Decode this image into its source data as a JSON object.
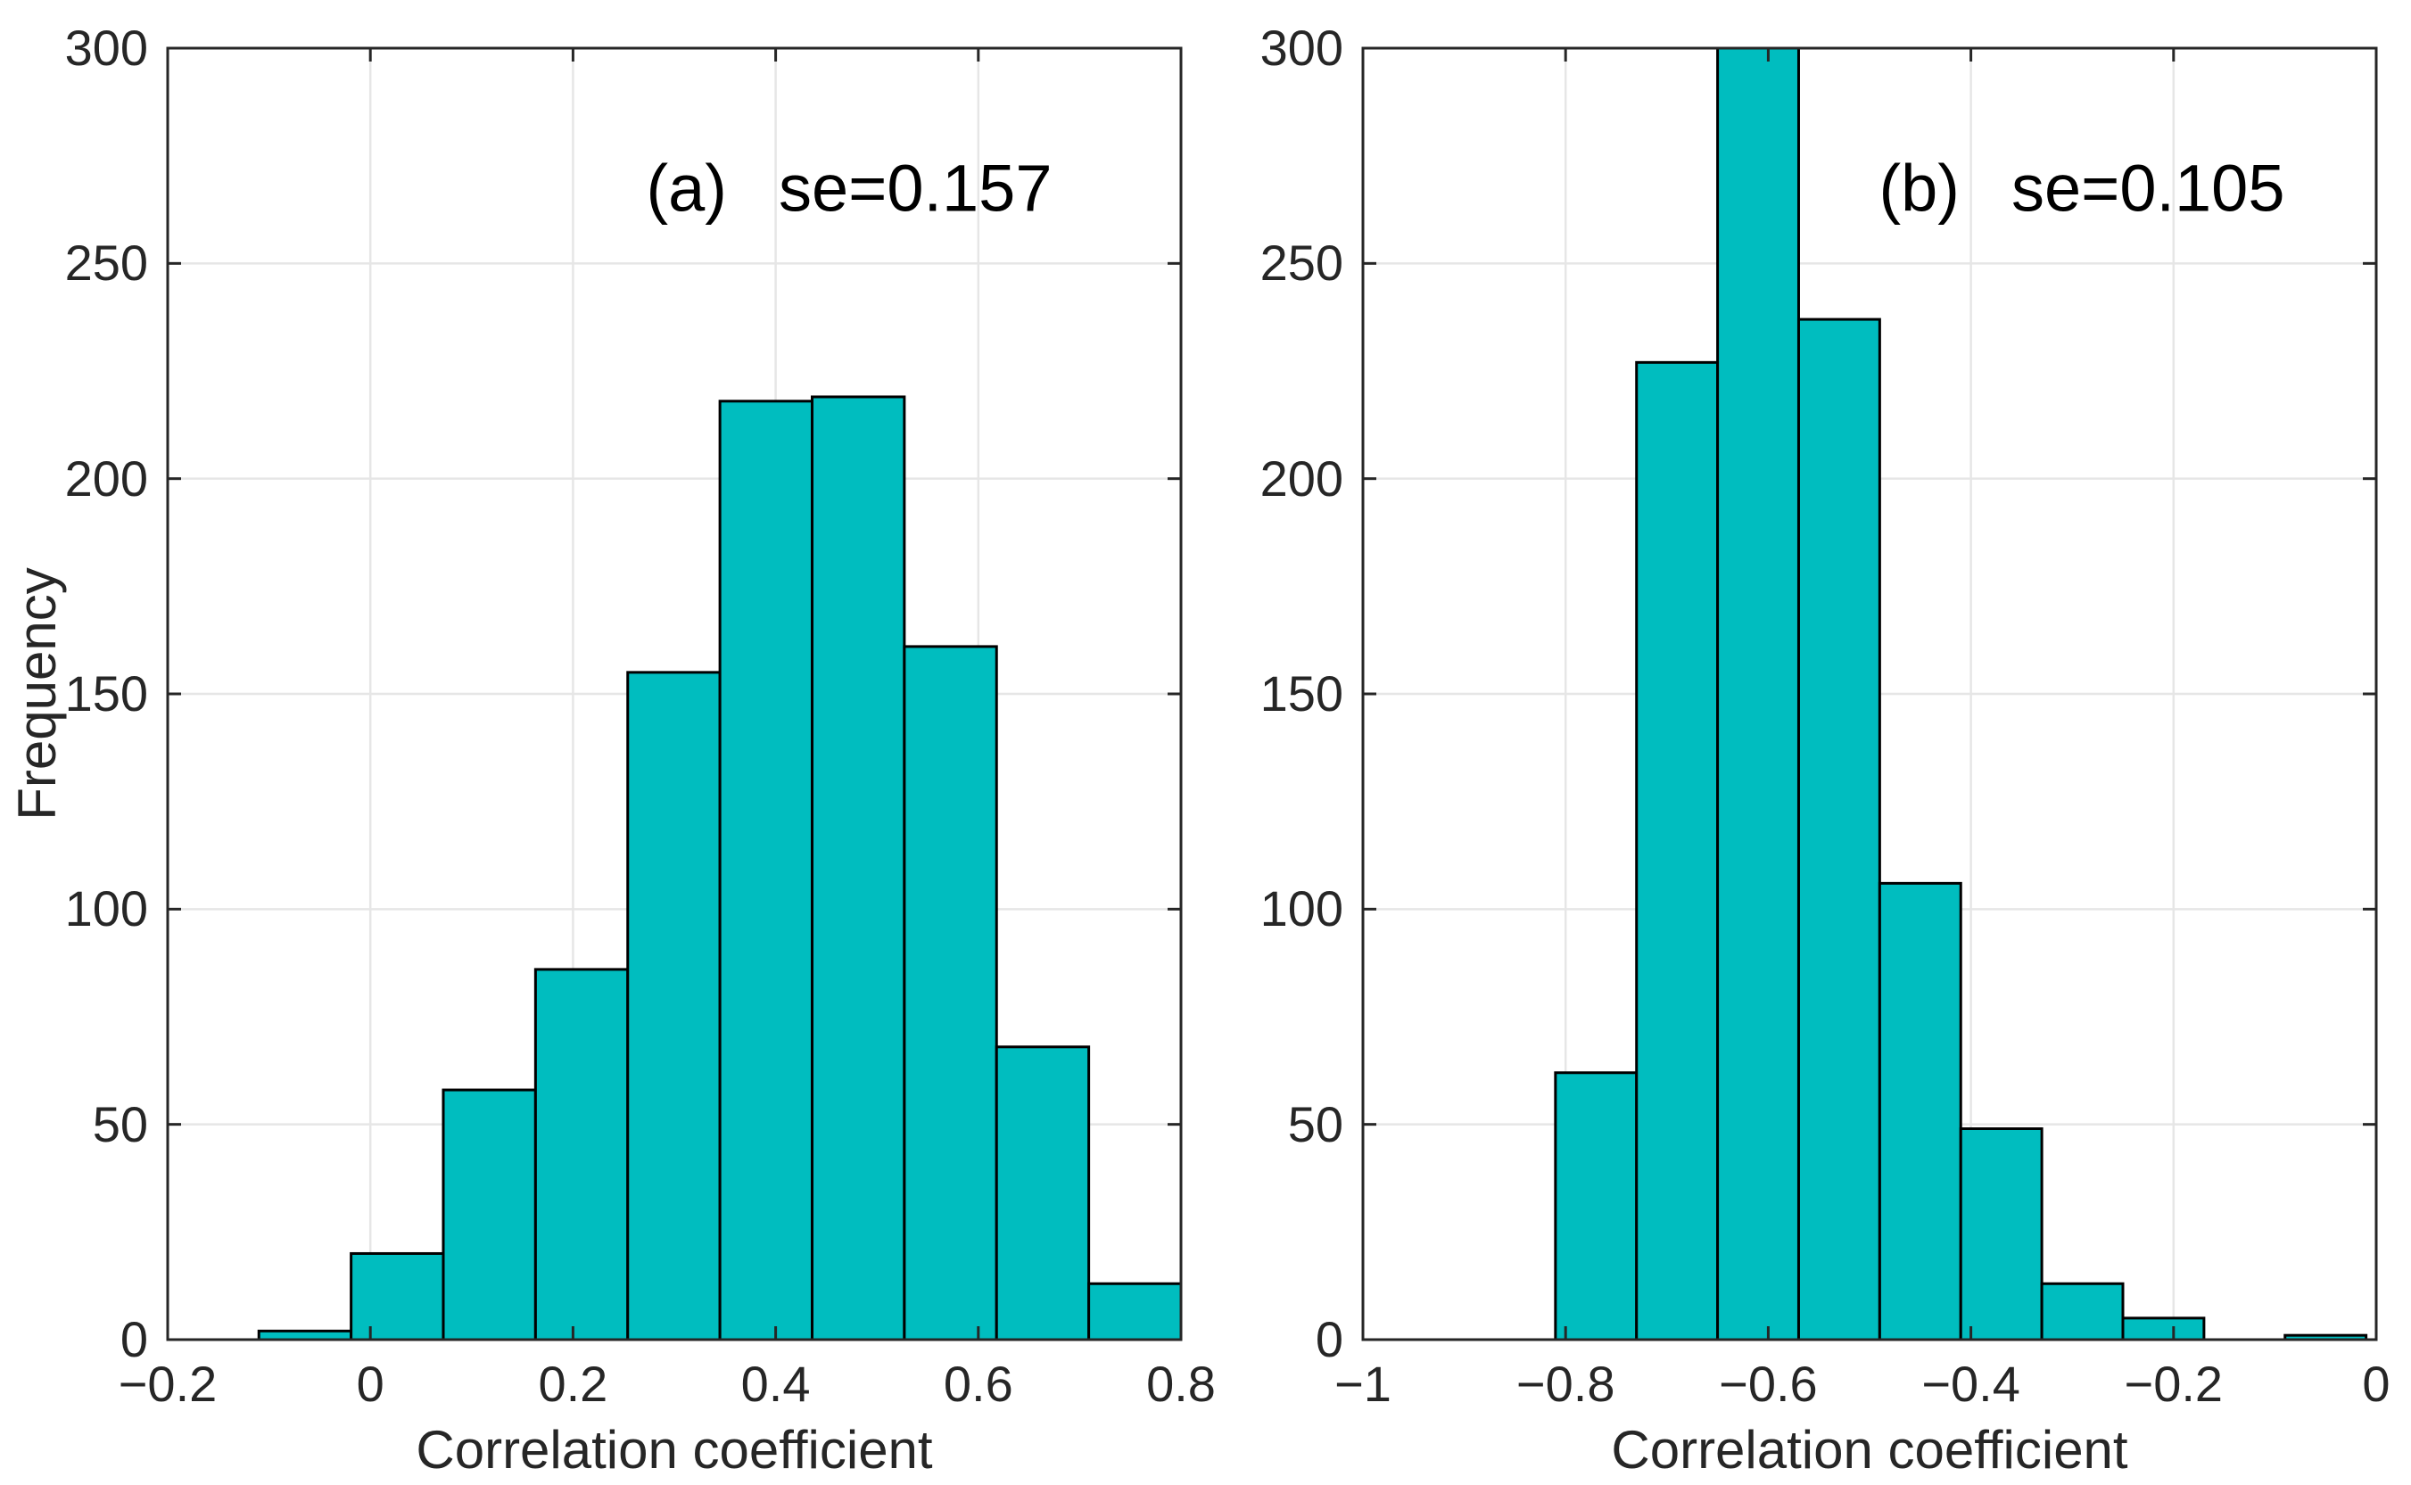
{
  "figure": {
    "background": "#ffffff",
    "bar_fill": "#00BDBF",
    "bar_edge": "#000000",
    "grid_color": "#e6e6e6",
    "axis_color": "#262626",
    "tick_text_color": "#262626",
    "title_text_color": "#000000"
  },
  "chart_data": [
    {
      "type": "bar",
      "subtype": "histogram",
      "panel_label": "(a)",
      "annotation": "se=0.157",
      "xlabel": "Correlation coefficient",
      "ylabel": "Frequency",
      "xlim": [
        -0.2,
        0.8
      ],
      "ylim": [
        0,
        300
      ],
      "grid": "on",
      "bin_edges": [
        -0.11,
        -0.019,
        0.072,
        0.163,
        0.254,
        0.345,
        0.436,
        0.527,
        0.618,
        0.709,
        0.8
      ],
      "values": [
        2,
        20,
        58,
        86,
        155,
        218,
        219,
        161,
        68,
        13
      ],
      "xticks": [
        {
          "v": -0.2,
          "label": "−0.2"
        },
        {
          "v": 0,
          "label": "0"
        },
        {
          "v": 0.2,
          "label": "0.2"
        },
        {
          "v": 0.4,
          "label": "0.4"
        },
        {
          "v": 0.6,
          "label": "0.6"
        },
        {
          "v": 0.8,
          "label": "0.8"
        }
      ],
      "yticks": [
        {
          "v": 0,
          "label": "0"
        },
        {
          "v": 50,
          "label": "50"
        },
        {
          "v": 100,
          "label": "100"
        },
        {
          "v": 150,
          "label": "150"
        },
        {
          "v": 200,
          "label": "200"
        },
        {
          "v": 250,
          "label": "250"
        },
        {
          "v": 300,
          "label": "300"
        }
      ]
    },
    {
      "type": "bar",
      "subtype": "histogram",
      "panel_label": "(b)",
      "annotation": "se=0.105",
      "xlabel": "Correlation coefficient",
      "ylabel": "",
      "xlim": [
        -1,
        0
      ],
      "ylim": [
        0,
        300
      ],
      "grid": "on",
      "bin_edges": [
        -0.81,
        -0.73,
        -0.65,
        -0.57,
        -0.49,
        -0.41,
        -0.33,
        -0.25,
        -0.17,
        -0.09,
        -0.01
      ],
      "values": [
        62,
        227,
        300,
        237,
        106,
        49,
        13,
        5,
        0,
        1
      ],
      "xticks": [
        {
          "v": -1,
          "label": "−1"
        },
        {
          "v": -0.8,
          "label": "−0.8"
        },
        {
          "v": -0.6,
          "label": "−0.6"
        },
        {
          "v": -0.4,
          "label": "−0.4"
        },
        {
          "v": -0.2,
          "label": "−0.2"
        },
        {
          "v": 0,
          "label": "0"
        }
      ],
      "yticks": [
        {
          "v": 0,
          "label": "0"
        },
        {
          "v": 50,
          "label": "50"
        },
        {
          "v": 100,
          "label": "100"
        },
        {
          "v": 150,
          "label": "150"
        },
        {
          "v": 200,
          "label": "200"
        },
        {
          "v": 250,
          "label": "250"
        },
        {
          "v": 300,
          "label": "300"
        }
      ]
    }
  ]
}
